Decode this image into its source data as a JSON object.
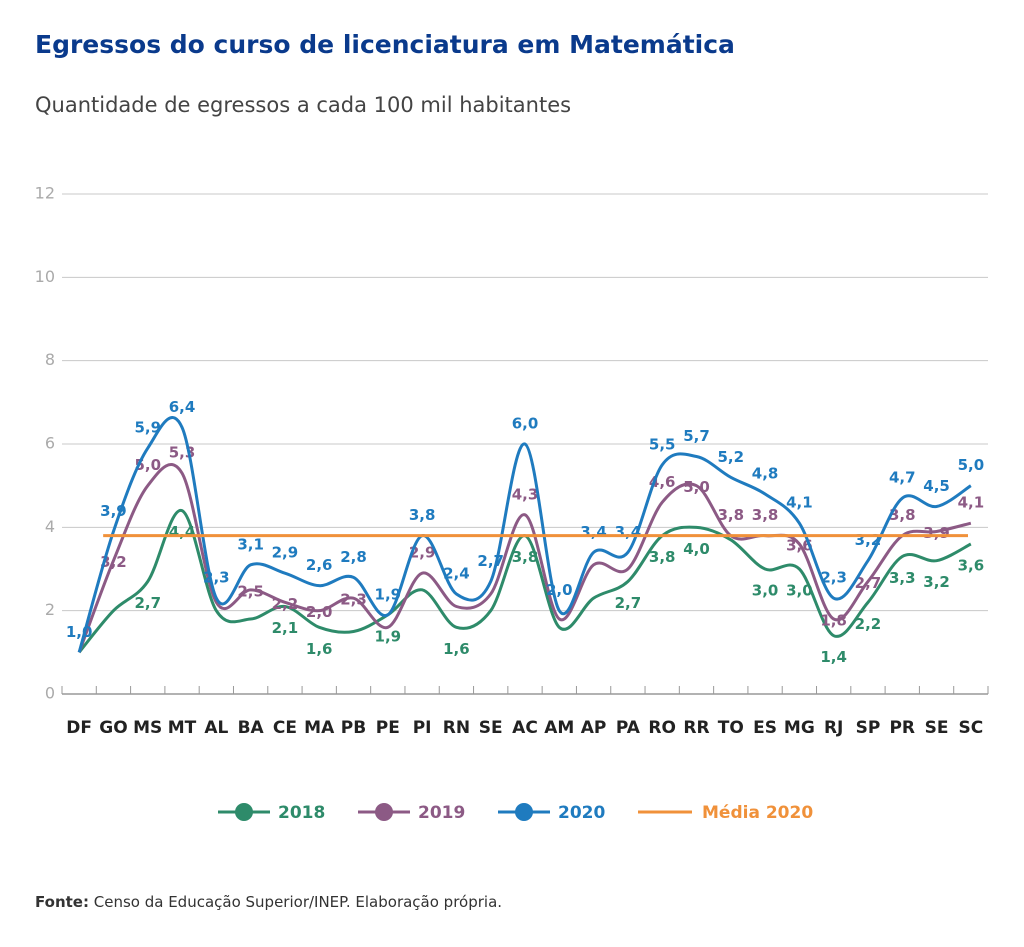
{
  "chart_data": {
    "type": "line",
    "title": "Egressos do curso de licenciatura em Matemática",
    "subtitle": "Quantidade de egressos a cada 100 mil habitantes",
    "categories": [
      "DF",
      "GO",
      "MS",
      "MT",
      "AL",
      "BA",
      "CE",
      "MA",
      "PB",
      "PE",
      "PI",
      "RN",
      "SE",
      "AC",
      "AM",
      "AP",
      "PA",
      "RO",
      "RR",
      "TO",
      "ES",
      "MG",
      "RJ",
      "SP",
      "PR",
      "SE",
      "SC"
    ],
    "series": [
      {
        "name": "2018",
        "color": "#2e8b6a",
        "values": [
          1.0,
          2.0,
          2.7,
          4.4,
          2.0,
          1.8,
          2.1,
          1.6,
          1.5,
          1.9,
          2.5,
          1.6,
          2.0,
          3.8,
          1.6,
          2.3,
          2.7,
          3.8,
          4.0,
          3.7,
          3.0,
          3.0,
          1.4,
          2.2,
          3.3,
          3.2,
          3.6
        ],
        "value_labels": [
          null,
          null,
          "2,7",
          "4,4",
          null,
          null,
          "2,1",
          "1,6",
          null,
          "1,9",
          null,
          "1,6",
          null,
          "3,8",
          null,
          null,
          "2,7",
          "3,8",
          "4,0",
          null,
          "3,0",
          "3,0",
          "1,4",
          "2,2",
          "3,3",
          "3,2",
          "3,6"
        ]
      },
      {
        "name": "2019",
        "color": "#8c5a85",
        "values": [
          1.0,
          3.2,
          5.0,
          5.3,
          2.2,
          2.5,
          2.2,
          2.0,
          2.3,
          1.6,
          2.9,
          2.1,
          2.4,
          4.3,
          1.8,
          3.1,
          3.0,
          4.6,
          5.0,
          3.8,
          3.8,
          3.6,
          1.8,
          2.7,
          3.8,
          3.9,
          4.1
        ],
        "value_labels": [
          null,
          "3,2",
          "5,0",
          "5,3",
          null,
          "2,5",
          "2,2",
          "2,0",
          "2,3",
          null,
          "2,9",
          null,
          null,
          "4,3",
          null,
          null,
          null,
          "4,6",
          "5,0",
          "3,8",
          "3,8",
          "3,6",
          "1,8",
          "2,7",
          "3,8",
          "3,9",
          "4,1"
        ]
      },
      {
        "name": "2020",
        "color": "#1f7bbf",
        "values": [
          1.0,
          3.9,
          5.9,
          6.4,
          2.3,
          3.1,
          2.9,
          2.6,
          2.8,
          1.9,
          3.8,
          2.4,
          2.7,
          6.0,
          2.0,
          3.4,
          3.4,
          5.5,
          5.7,
          5.2,
          4.8,
          4.1,
          2.3,
          3.2,
          4.7,
          4.5,
          5.0
        ],
        "value_labels": [
          "1,0",
          "3,9",
          "5,9",
          "6,4",
          "2,3",
          "3,1",
          "2,9",
          "2,6",
          "2,8",
          "1,9",
          "3,8",
          "2,4",
          "2,7",
          "6,0",
          "2,0",
          "3,4",
          "3,4",
          "5,5",
          "5,7",
          "5,2",
          "4,8",
          "4,1",
          "2,3",
          "3,2",
          "4,7",
          "4,5",
          "5,0"
        ]
      }
    ],
    "average": {
      "name": "Média 2020",
      "value": 3.8,
      "color": "#f0913a"
    },
    "ylim": [
      0,
      12
    ],
    "yticks": [
      0,
      2,
      4,
      6,
      8,
      10,
      12
    ],
    "grid": true,
    "source_label": "Fonte:",
    "source": "Censo da Educação Superior/INEP. Elaboração própria."
  }
}
